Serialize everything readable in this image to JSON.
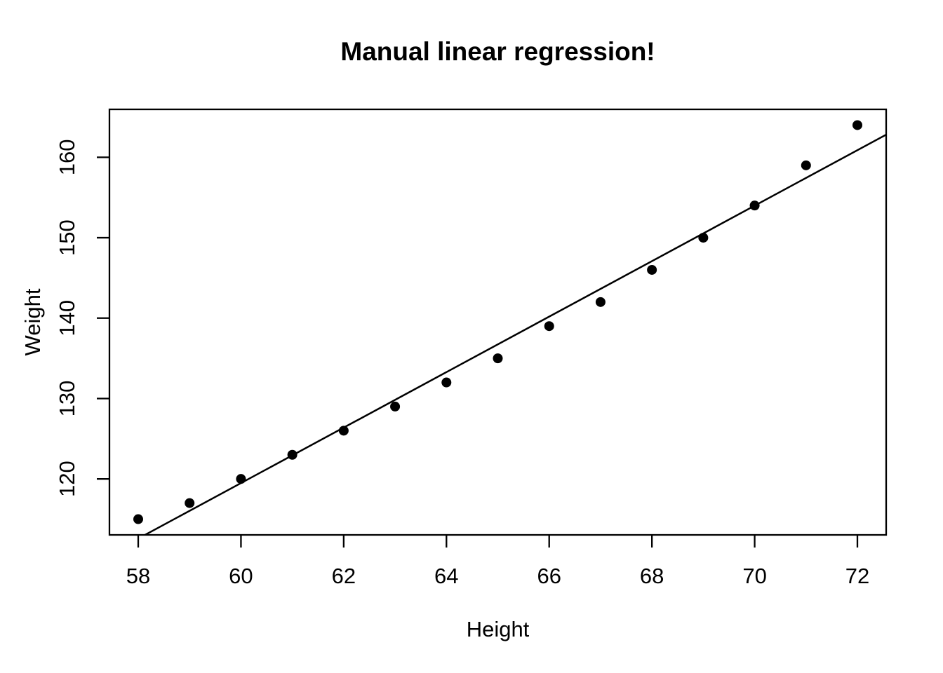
{
  "page": {
    "background": "#ffffff",
    "foreground": "#000000"
  },
  "chart_data": {
    "type": "scatter",
    "title": "Manual linear regression!",
    "xlabel": "Height",
    "ylabel": "Weight",
    "x": [
      58,
      59,
      60,
      61,
      62,
      63,
      64,
      65,
      66,
      67,
      68,
      69,
      70,
      71,
      72
    ],
    "y": [
      115,
      117,
      120,
      123,
      126,
      129,
      132,
      135,
      139,
      142,
      146,
      150,
      154,
      159,
      164
    ],
    "x_ticks": [
      "58",
      "60",
      "62",
      "64",
      "66",
      "68",
      "70",
      "72"
    ],
    "y_ticks": [
      "120",
      "130",
      "140",
      "150",
      "160"
    ],
    "x_tick_values": [
      58,
      60,
      62,
      64,
      66,
      68,
      70,
      72
    ],
    "y_tick_values": [
      120,
      130,
      140,
      150,
      160
    ],
    "xlim": [
      57.44,
      72.56
    ],
    "ylim": [
      113.04,
      165.96
    ],
    "regression_line": {
      "slope": 3.45,
      "intercept": -87.51667
    },
    "marker": "filled-circle",
    "point_color": "#000000",
    "line_color": "#000000",
    "axis_color": "#000000",
    "grid": false,
    "legend_position": "none"
  }
}
